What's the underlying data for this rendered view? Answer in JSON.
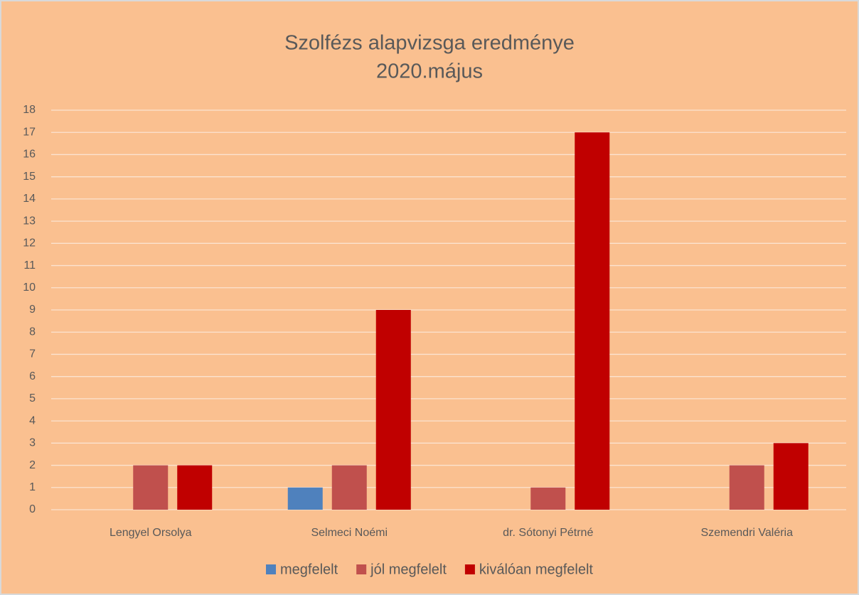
{
  "chart_data": {
    "type": "bar",
    "title": "Szolfézs alapvizsga eredménye",
    "subtitle": "2020.május",
    "categories": [
      "Lengyel Orsolya",
      "Selmeci Noémi",
      "dr. Sótonyi Pétrné",
      "Szemendri Valéria"
    ],
    "series": [
      {
        "name": "megfelelt",
        "color": "#4f81bd",
        "values": [
          null,
          1,
          null,
          null
        ]
      },
      {
        "name": "jól megfelelt",
        "color": "#c0504d",
        "values": [
          2,
          2,
          1,
          2
        ]
      },
      {
        "name": "kiválóan megfelelt",
        "color": "#c00000",
        "values": [
          2,
          9,
          17,
          3
        ]
      }
    ],
    "ylim": [
      0,
      18
    ],
    "yticks": [
      0,
      1,
      2,
      3,
      4,
      5,
      6,
      7,
      8,
      9,
      10,
      11,
      12,
      13,
      14,
      15,
      16,
      17,
      18
    ],
    "grid": true,
    "legend": "bottom"
  }
}
